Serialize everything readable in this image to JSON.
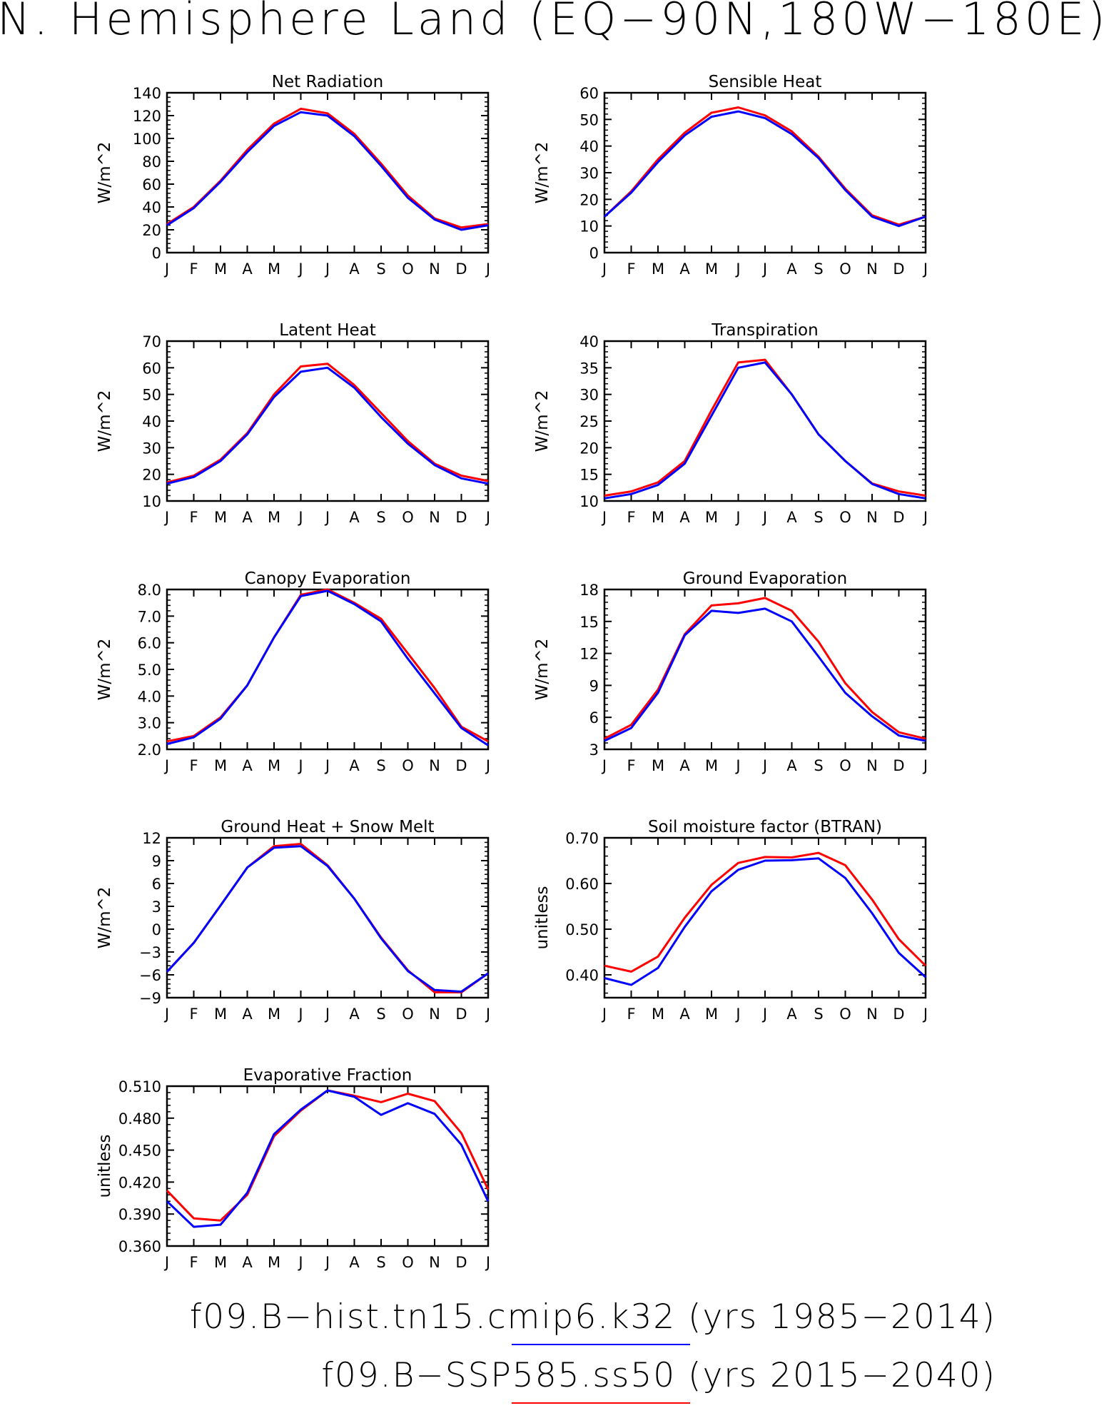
{
  "title": "N. Hemisphere Land (EQ−90N,180W−180E)",
  "legend": [
    {
      "label": "f09.B−hist.tn15.cmip6.k32 (yrs 1985−2014)",
      "color": "#0000ff"
    },
    {
      "label": "f09.B−SSP585.ss50 (yrs 2015−2040)",
      "color": "#ff0000"
    }
  ],
  "chart_data": [
    {
      "type": "line",
      "title": "Net Radiation",
      "ylabel": "W/m^2",
      "categories": [
        "J",
        "F",
        "M",
        "A",
        "M",
        "J",
        "J",
        "A",
        "S",
        "O",
        "N",
        "D",
        "J"
      ],
      "ylim": [
        0,
        140
      ],
      "yticks": [
        "0",
        "20",
        "40",
        "60",
        "80",
        "100",
        "120",
        "140"
      ],
      "grid": false,
      "series": [
        {
          "color": "#ff0000",
          "values": [
            25,
            40,
            63,
            90,
            113,
            126,
            122,
            104,
            78,
            50,
            30,
            22,
            25
          ]
        },
        {
          "color": "#0000ff",
          "values": [
            24,
            39,
            62,
            88,
            111,
            123,
            120,
            102,
            76,
            48,
            29,
            20,
            24
          ]
        }
      ]
    },
    {
      "type": "line",
      "title": "Sensible Heat",
      "ylabel": "W/m^2",
      "categories": [
        "J",
        "F",
        "M",
        "A",
        "M",
        "J",
        "J",
        "A",
        "S",
        "O",
        "N",
        "D",
        "J"
      ],
      "ylim": [
        0,
        60
      ],
      "yticks": [
        "0",
        "10",
        "20",
        "30",
        "40",
        "50",
        "60"
      ],
      "grid": false,
      "series": [
        {
          "color": "#ff0000",
          "values": [
            13.5,
            23,
            35,
            45,
            52.5,
            54.5,
            51.5,
            45.5,
            36,
            24,
            14,
            10.5,
            13.5
          ]
        },
        {
          "color": "#0000ff",
          "values": [
            13.5,
            22.5,
            34,
            44,
            51,
            53,
            50.5,
            44.5,
            35.5,
            23.5,
            13.5,
            10,
            13.5
          ]
        }
      ]
    },
    {
      "type": "line",
      "title": "Latent Heat",
      "ylabel": "W/m^2",
      "categories": [
        "J",
        "F",
        "M",
        "A",
        "M",
        "J",
        "J",
        "A",
        "S",
        "O",
        "N",
        "D",
        "J"
      ],
      "ylim": [
        10,
        70
      ],
      "yticks": [
        "10",
        "20",
        "30",
        "40",
        "50",
        "60",
        "70"
      ],
      "grid": false,
      "series": [
        {
          "color": "#ff0000",
          "values": [
            17,
            19.5,
            25.5,
            35.5,
            50,
            60.5,
            61.5,
            53.5,
            43,
            32.5,
            24,
            19.5,
            17.5
          ]
        },
        {
          "color": "#0000ff",
          "values": [
            16.5,
            19,
            25,
            35,
            49,
            58.5,
            60,
            52.5,
            41.5,
            31.5,
            23.5,
            18.5,
            16.5
          ]
        }
      ]
    },
    {
      "type": "line",
      "title": "Transpiration",
      "ylabel": "W/m^2",
      "categories": [
        "J",
        "F",
        "M",
        "A",
        "M",
        "J",
        "J",
        "A",
        "S",
        "O",
        "N",
        "D",
        "J"
      ],
      "ylim": [
        10,
        40
      ],
      "yticks": [
        "10",
        "15",
        "20",
        "25",
        "30",
        "35",
        "40"
      ],
      "grid": false,
      "series": [
        {
          "color": "#ff0000",
          "values": [
            11,
            11.8,
            13.5,
            17.5,
            27,
            36,
            36.5,
            30,
            22.5,
            17.5,
            13.3,
            11.8,
            11
          ]
        },
        {
          "color": "#0000ff",
          "values": [
            10.5,
            11.3,
            13,
            17,
            26,
            35,
            36,
            30,
            22.5,
            17.5,
            13.2,
            11.3,
            10.5
          ]
        }
      ]
    },
    {
      "type": "line",
      "title": "Canopy Evaporation",
      "ylabel": "W/m^2",
      "categories": [
        "J",
        "F",
        "M",
        "A",
        "M",
        "J",
        "J",
        "A",
        "S",
        "O",
        "N",
        "D",
        "J"
      ],
      "ylim": [
        2.0,
        8.0
      ],
      "yticks": [
        "2.0",
        "3.0",
        "4.0",
        "5.0",
        "6.0",
        "7.0",
        "8.0"
      ],
      "grid": false,
      "series": [
        {
          "color": "#ff0000",
          "values": [
            2.3,
            2.5,
            3.2,
            4.4,
            6.2,
            7.8,
            8.0,
            7.5,
            6.9,
            5.6,
            4.3,
            2.85,
            2.3
          ]
        },
        {
          "color": "#0000ff",
          "values": [
            2.2,
            2.45,
            3.15,
            4.4,
            6.2,
            7.75,
            7.95,
            7.45,
            6.8,
            5.4,
            4.1,
            2.8,
            2.15
          ]
        }
      ]
    },
    {
      "type": "line",
      "title": "Ground Evaporation",
      "ylabel": "W/m^2",
      "categories": [
        "J",
        "F",
        "M",
        "A",
        "M",
        "J",
        "J",
        "A",
        "S",
        "O",
        "N",
        "D",
        "J"
      ],
      "ylim": [
        3,
        18
      ],
      "yticks": [
        "3",
        "6",
        "9",
        "12",
        "15",
        "18"
      ],
      "grid": false,
      "series": [
        {
          "color": "#ff0000",
          "values": [
            4.0,
            5.3,
            8.6,
            13.8,
            16.5,
            16.7,
            17.2,
            16.0,
            13.1,
            9.2,
            6.5,
            4.6,
            4.0
          ]
        },
        {
          "color": "#0000ff",
          "values": [
            3.8,
            5.0,
            8.3,
            13.7,
            16.0,
            15.8,
            16.2,
            15.0,
            11.7,
            8.3,
            6.1,
            4.3,
            3.8
          ]
        }
      ]
    },
    {
      "type": "line",
      "title": "Ground Heat + Snow Melt",
      "ylabel": "W/m^2",
      "categories": [
        "J",
        "F",
        "M",
        "A",
        "M",
        "J",
        "J",
        "A",
        "S",
        "O",
        "N",
        "D",
        "J"
      ],
      "ylim": [
        -9,
        12
      ],
      "yticks": [
        "−9",
        "−6",
        "−3",
        "0",
        "3",
        "6",
        "9",
        "12"
      ],
      "grid": false,
      "series": [
        {
          "color": "#ff0000",
          "values": [
            -5.6,
            -1.8,
            3.1,
            8.1,
            10.9,
            11.2,
            8.4,
            4.0,
            -1.1,
            -5.4,
            -8.3,
            -8.3,
            -5.8
          ]
        },
        {
          "color": "#0000ff",
          "values": [
            -5.6,
            -1.8,
            3.1,
            8.1,
            10.7,
            10.9,
            8.3,
            4.0,
            -1.2,
            -5.5,
            -8.0,
            -8.2,
            -5.8
          ]
        }
      ]
    },
    {
      "type": "line",
      "title": "Soil moisture factor (BTRAN)",
      "ylabel": "unitless",
      "categories": [
        "J",
        "F",
        "M",
        "A",
        "M",
        "J",
        "J",
        "A",
        "S",
        "O",
        "N",
        "D",
        "J"
      ],
      "ylim": [
        0.35,
        0.7
      ],
      "yticks": [
        "0.40",
        "0.50",
        "0.60",
        "0.70"
      ],
      "grid": false,
      "series": [
        {
          "color": "#ff0000",
          "values": [
            0.42,
            0.407,
            0.44,
            0.525,
            0.597,
            0.645,
            0.658,
            0.657,
            0.667,
            0.64,
            0.565,
            0.478,
            0.42
          ]
        },
        {
          "color": "#0000ff",
          "values": [
            0.393,
            0.378,
            0.415,
            0.505,
            0.583,
            0.63,
            0.65,
            0.651,
            0.655,
            0.612,
            0.535,
            0.448,
            0.395
          ]
        }
      ]
    },
    {
      "type": "line",
      "title": "Evaporative Fraction",
      "ylabel": "unitless",
      "categories": [
        "J",
        "F",
        "M",
        "A",
        "M",
        "J",
        "J",
        "A",
        "S",
        "O",
        "N",
        "D",
        "J"
      ],
      "ylim": [
        0.36,
        0.51
      ],
      "yticks": [
        "0.360",
        "0.390",
        "0.420",
        "0.450",
        "0.480",
        "0.510"
      ],
      "grid": false,
      "series": [
        {
          "color": "#ff0000",
          "values": [
            0.412,
            0.386,
            0.384,
            0.408,
            0.463,
            0.487,
            0.506,
            0.501,
            0.495,
            0.503,
            0.496,
            0.466,
            0.413
          ]
        },
        {
          "color": "#0000ff",
          "values": [
            0.402,
            0.378,
            0.38,
            0.41,
            0.465,
            0.488,
            0.506,
            0.5,
            0.483,
            0.494,
            0.484,
            0.455,
            0.402
          ]
        }
      ]
    }
  ]
}
